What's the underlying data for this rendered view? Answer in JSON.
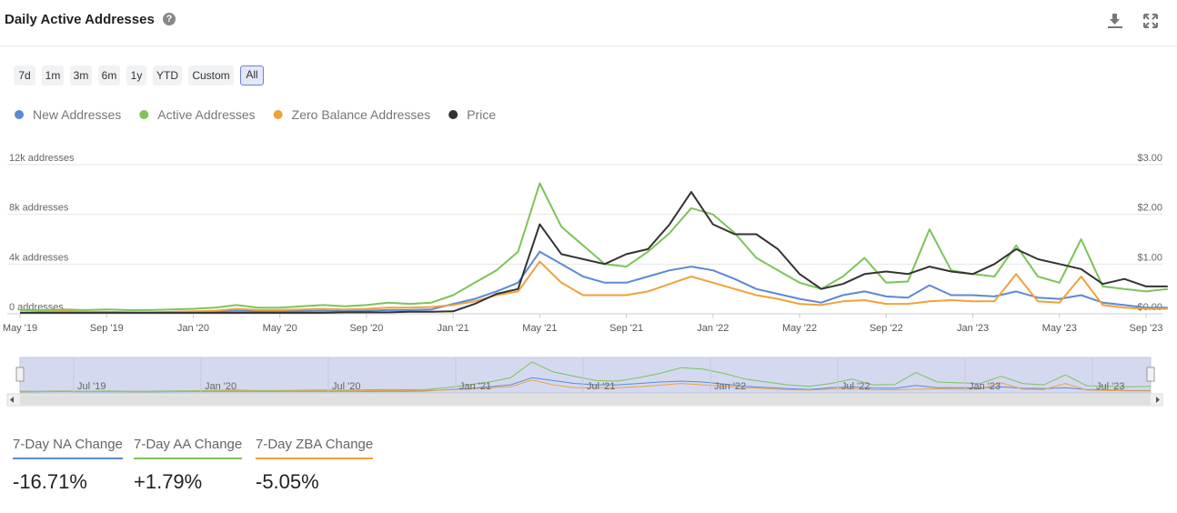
{
  "header": {
    "title": "Daily Active Addresses",
    "ranges": [
      "7d",
      "1m",
      "3m",
      "6m",
      "1y",
      "YTD",
      "Custom",
      "All"
    ],
    "selected_range": "All"
  },
  "chart_data": {
    "type": "line",
    "categories": [
      "May '19",
      null,
      null,
      null,
      "Sep '19",
      null,
      null,
      null,
      "Jan '20",
      null,
      null,
      null,
      "May '20",
      null,
      null,
      null,
      "Sep '20",
      null,
      null,
      null,
      "Jan '21",
      null,
      null,
      null,
      "May '21",
      null,
      null,
      null,
      "Sep '21",
      null,
      null,
      null,
      "Jan '22",
      null,
      null,
      null,
      "May '22",
      null,
      null,
      null,
      "Sep '22",
      null,
      null,
      null,
      "Jan '23",
      null,
      null,
      null,
      "May '23",
      null,
      null,
      null,
      "Sep '23",
      null
    ],
    "series": [
      {
        "name": "New Addresses",
        "color": "#5b8ad6",
        "values": [
          100,
          120,
          150,
          120,
          130,
          120,
          110,
          130,
          150,
          180,
          250,
          200,
          200,
          220,
          250,
          220,
          250,
          300,
          300,
          350,
          800,
          1200,
          1800,
          2500,
          5000,
          4000,
          3000,
          2500,
          2500,
          3000,
          3500,
          3800,
          3500,
          2800,
          2000,
          1600,
          1200,
          900,
          1500,
          1800,
          1400,
          1300,
          2300,
          1500,
          1500,
          1400,
          1800,
          1300,
          1200,
          1500,
          900,
          700,
          500,
          500
        ]
      },
      {
        "name": "Active Addresses",
        "color": "#7dc35b",
        "values": [
          300,
          300,
          350,
          300,
          350,
          300,
          300,
          350,
          400,
          500,
          700,
          500,
          500,
          600,
          700,
          600,
          700,
          900,
          800,
          900,
          1500,
          2500,
          3500,
          5000,
          10500,
          7000,
          5500,
          4000,
          3800,
          5000,
          6500,
          8500,
          8000,
          6500,
          4500,
          3500,
          2500,
          2000,
          3000,
          4500,
          2500,
          2600,
          6800,
          3500,
          3200,
          3000,
          5500,
          3000,
          2500,
          6000,
          2200,
          2000,
          1800,
          2000
        ]
      },
      {
        "name": "Zero Balance Addresses",
        "color": "#f0a23a",
        "values": [
          100,
          150,
          200,
          150,
          150,
          120,
          120,
          150,
          200,
          250,
          400,
          300,
          300,
          350,
          400,
          350,
          400,
          500,
          500,
          550,
          700,
          1000,
          1500,
          1800,
          4200,
          2500,
          1500,
          1500,
          1500,
          1800,
          2400,
          3000,
          2500,
          2000,
          1500,
          1200,
          800,
          700,
          1000,
          1100,
          800,
          800,
          1000,
          1100,
          1000,
          1000,
          3200,
          1000,
          900,
          3000,
          700,
          500,
          400,
          400
        ]
      },
      {
        "name": "Price",
        "color": "#333333",
        "axis": "y2",
        "values": [
          0.02,
          0.02,
          0.02,
          0.02,
          0.02,
          0.02,
          0.02,
          0.02,
          0.02,
          0.02,
          0.02,
          0.02,
          0.02,
          0.02,
          0.02,
          0.03,
          0.03,
          0.03,
          0.04,
          0.04,
          0.05,
          0.2,
          0.4,
          0.5,
          1.8,
          1.2,
          1.1,
          1.0,
          1.2,
          1.3,
          1.8,
          2.45,
          1.8,
          1.6,
          1.6,
          1.3,
          0.8,
          0.5,
          0.6,
          0.8,
          0.85,
          0.8,
          0.95,
          0.85,
          0.8,
          1.0,
          1.3,
          1.1,
          1.0,
          0.9,
          0.6,
          0.7,
          0.55,
          0.55
        ]
      }
    ],
    "ylim": [
      0,
      12000
    ],
    "yticks": [
      {
        "value": 0,
        "label": "0 addresses"
      },
      {
        "value": 4000,
        "label": "4k addresses"
      },
      {
        "value": 8000,
        "label": "8k addresses"
      },
      {
        "value": 12000,
        "label": "12k addresses"
      }
    ],
    "y2lim": [
      0,
      3
    ],
    "y2ticks": [
      {
        "value": 0,
        "label": "$0.00"
      },
      {
        "value": 1,
        "label": "$1.00"
      },
      {
        "value": 2,
        "label": "$2.00"
      },
      {
        "value": 3,
        "label": "$3.00"
      }
    ],
    "grid": true,
    "legend": "top-left",
    "navigator_labels": [
      "Jul '19",
      "Jan '20",
      "Jul '20",
      "Jan '21",
      "Jul '21",
      "Jan '22",
      "Jul '22",
      "Jan '23",
      "Jul '23"
    ]
  },
  "stats": [
    {
      "label": "7-Day NA Change",
      "value": "-16.71%",
      "color": "#5b8ad6"
    },
    {
      "label": "7-Day AA Change",
      "value": "+1.79%",
      "color": "#7dc35b"
    },
    {
      "label": "7-Day ZBA Change",
      "value": "-5.05%",
      "color": "#f0a23a"
    }
  ]
}
